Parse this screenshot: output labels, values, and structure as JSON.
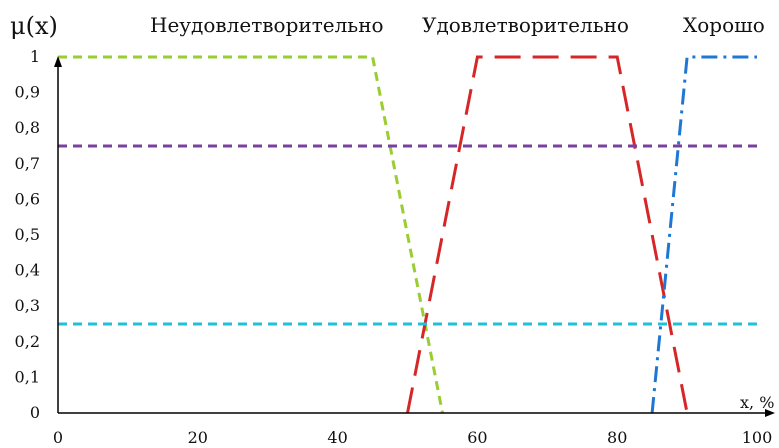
{
  "chart_data": {
    "type": "line",
    "title": "",
    "ylabel": "μ(x)",
    "xlabel": "x, %",
    "xlim": [
      0,
      100
    ],
    "ylim": [
      0,
      1
    ],
    "x_ticks": [
      "0",
      "20",
      "40",
      "60",
      "80",
      "100"
    ],
    "y_ticks": [
      "0",
      "0,1",
      "0,2",
      "0,3",
      "0,4",
      "0,5",
      "0,6",
      "0,7",
      "0,8",
      "0,9",
      "1"
    ],
    "grid": false,
    "category_labels": [
      "Неудовлетворительно",
      "Удовлетворительно",
      "Хорошо"
    ],
    "series": [
      {
        "name": "Неудовлетворительно",
        "color": "#9ACD32",
        "dash": "dashed",
        "points": [
          [
            0,
            1
          ],
          [
            45,
            1
          ],
          [
            55,
            0
          ]
        ]
      },
      {
        "name": "Удовлетворительно",
        "color": "#D62728",
        "dash": "long-dashed",
        "points": [
          [
            50,
            0
          ],
          [
            60,
            1
          ],
          [
            80,
            1
          ],
          [
            90,
            0
          ]
        ]
      },
      {
        "name": "Хорошо",
        "color": "#1F77D4",
        "dash": "dash-dot",
        "points": [
          [
            85,
            0
          ],
          [
            90,
            1
          ],
          [
            100,
            1
          ]
        ]
      },
      {
        "color": "#7B3FA0",
        "dash": "dashed",
        "points": [
          [
            0,
            0.75
          ],
          [
            100,
            0.75
          ]
        ]
      },
      {
        "color": "#1FC0D8",
        "dash": "dashed",
        "points": [
          [
            0,
            0.25
          ],
          [
            100,
            0.25
          ]
        ]
      }
    ]
  }
}
